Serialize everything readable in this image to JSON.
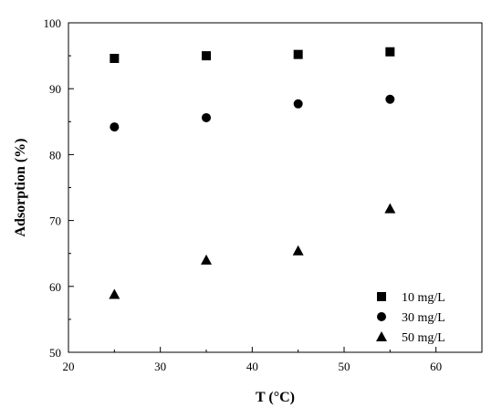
{
  "chart_data": {
    "type": "scatter",
    "title": "",
    "xlabel": "T (°C)",
    "ylabel": "Adsorption (%)",
    "xlim": [
      20,
      65
    ],
    "ylim": [
      50,
      100
    ],
    "xticks": [
      20,
      30,
      40,
      50,
      60
    ],
    "yticks": [
      50,
      60,
      70,
      80,
      90,
      100
    ],
    "grid": false,
    "legend_position": "bottom-right",
    "series": [
      {
        "name": "10 mg/L",
        "marker": "square",
        "color": "#000000",
        "x": [
          25,
          35,
          45,
          55
        ],
        "y": [
          94.6,
          95.0,
          95.2,
          95.6
        ]
      },
      {
        "name": "30 mg/L",
        "marker": "circle",
        "color": "#000000",
        "x": [
          25,
          35,
          45,
          55
        ],
        "y": [
          84.2,
          85.6,
          87.7,
          88.4
        ]
      },
      {
        "name": "50 mg/L",
        "marker": "triangle",
        "color": "#000000",
        "x": [
          25,
          35,
          45,
          55
        ],
        "y": [
          58.8,
          64.0,
          65.4,
          71.8
        ]
      }
    ]
  }
}
